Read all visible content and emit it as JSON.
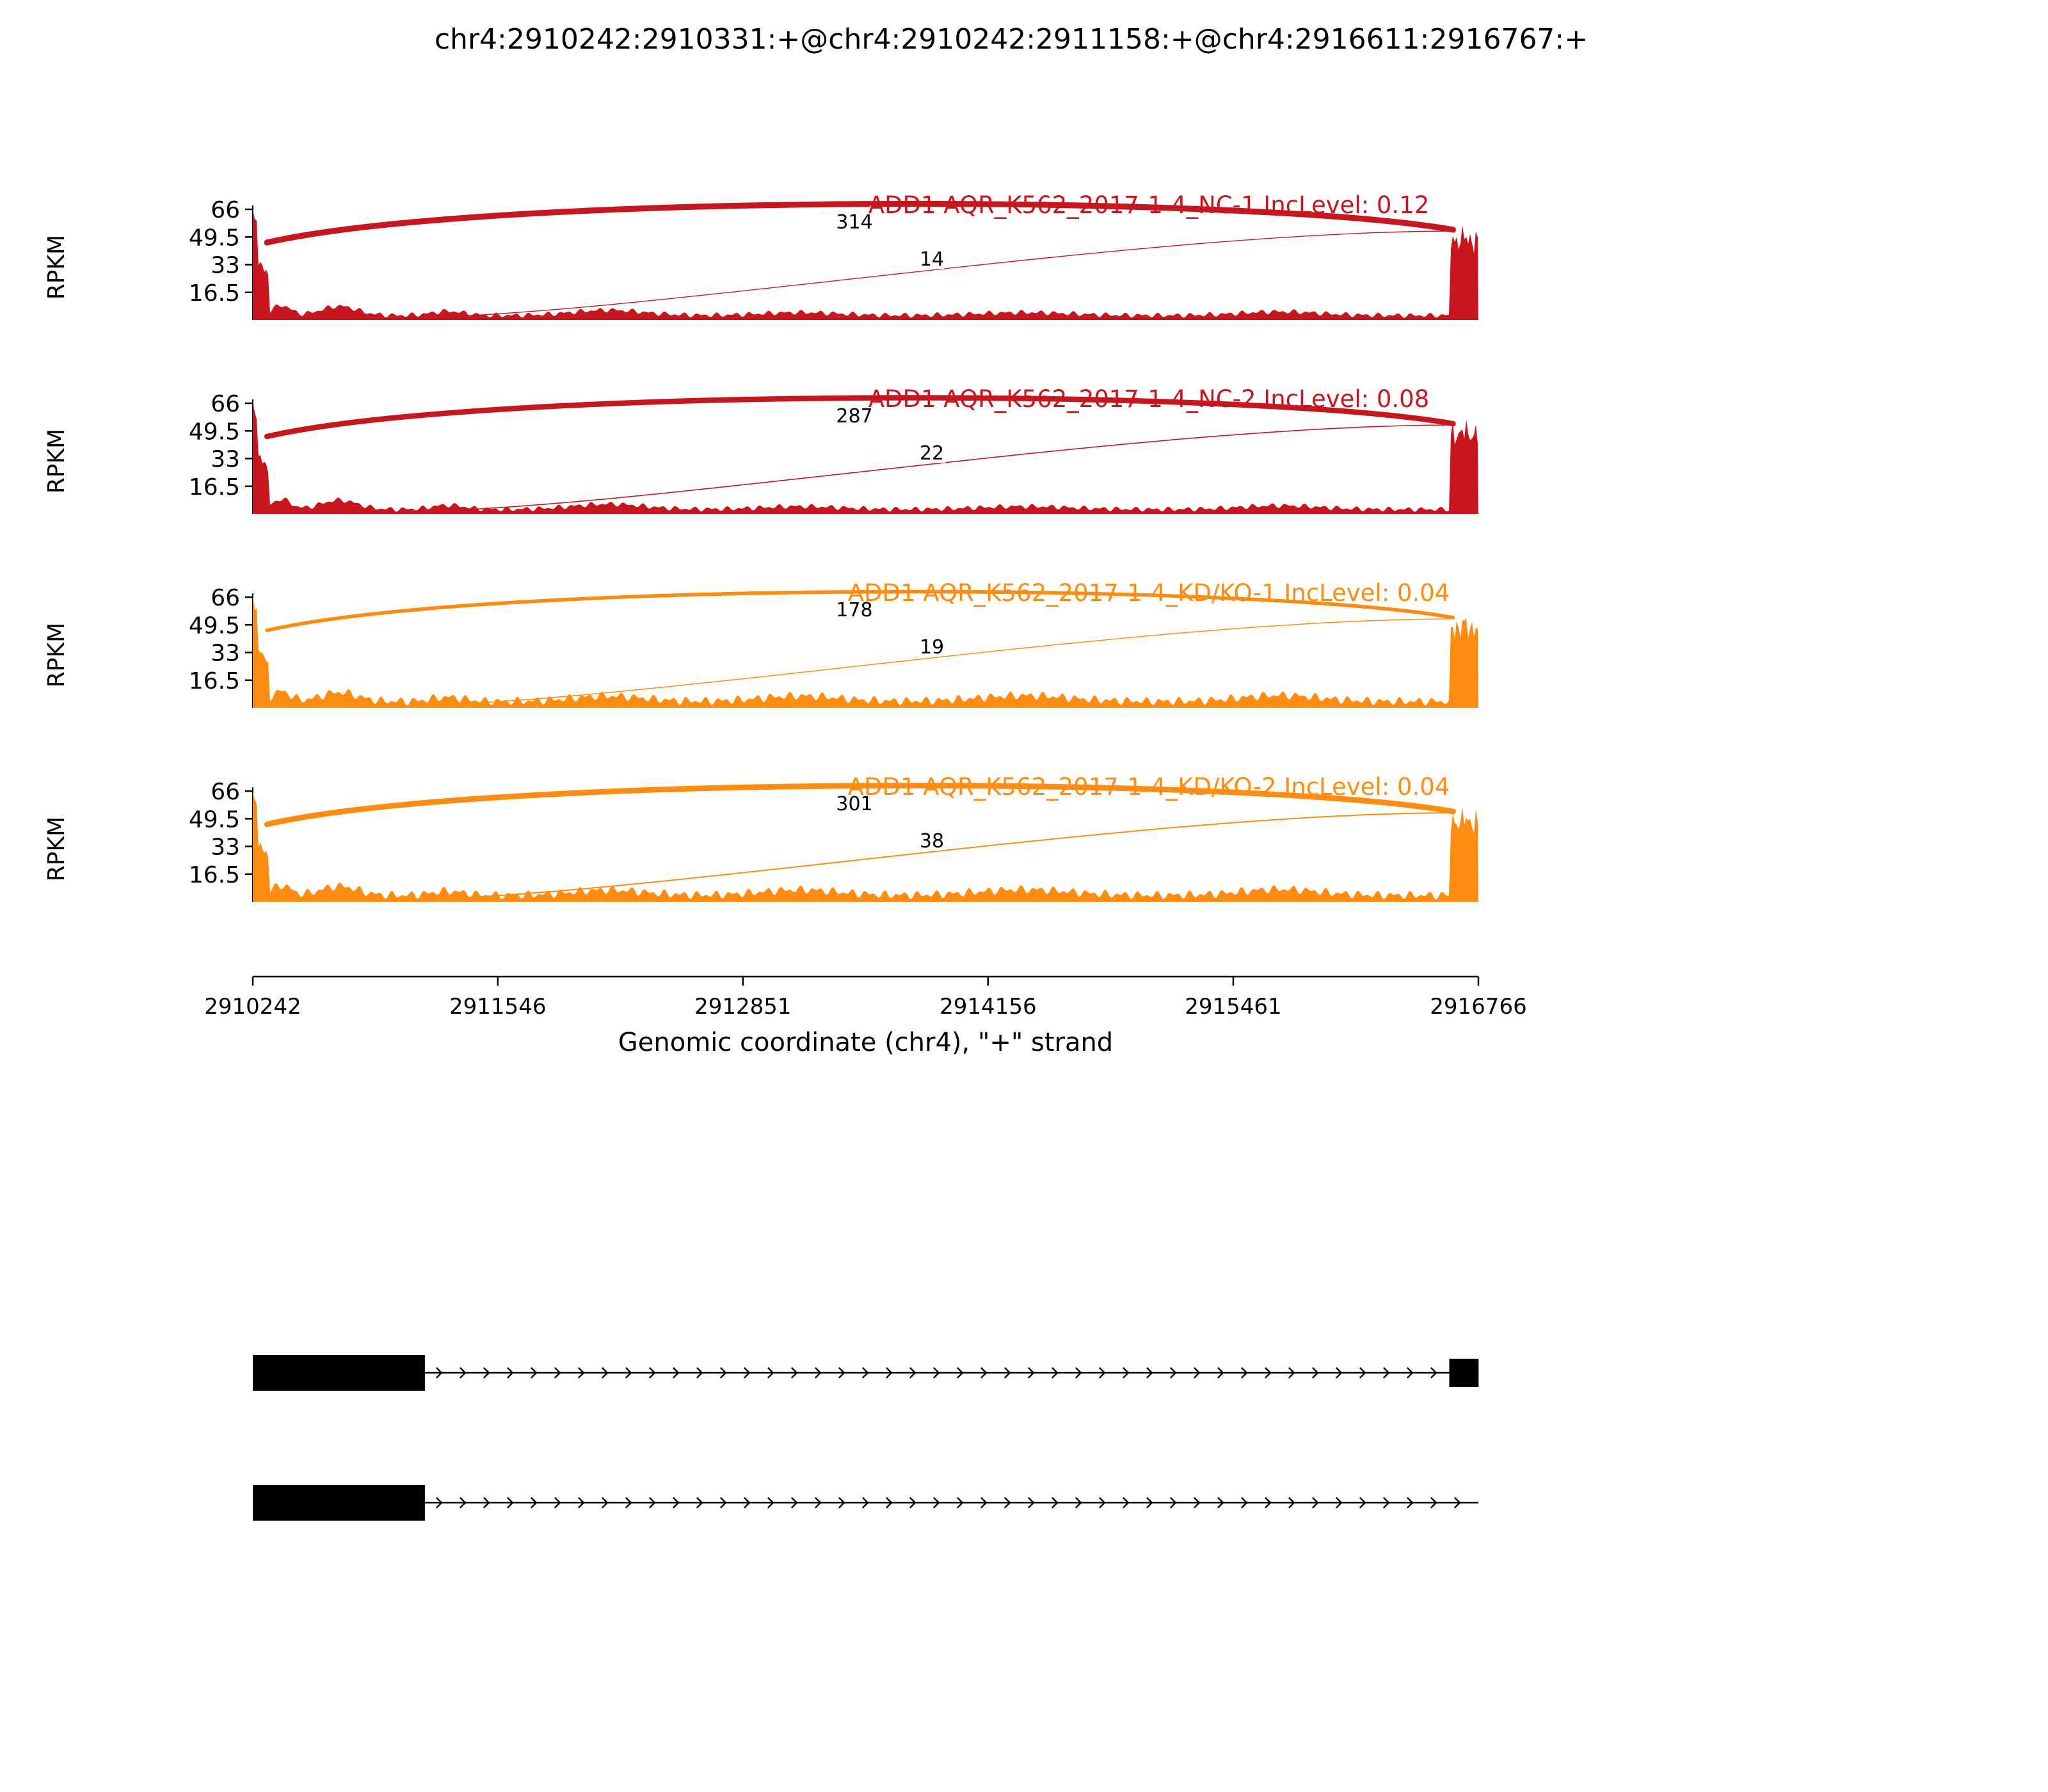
{
  "title": "chr4:2910242:2910331:+@chr4:2910242:2911158:+@chr4:2916611:2916767:+",
  "y_axis": {
    "label": "RPKM",
    "ticks": [
      "66",
      "49.5",
      "33",
      "16.5"
    ]
  },
  "x_axis": {
    "label": "Genomic coordinate (chr4), \"+\" strand",
    "ticks": [
      "2910242",
      "2911546",
      "2912851",
      "2914156",
      "2915461",
      "2916766"
    ]
  },
  "tracks": [
    {
      "label": "ADD1 AQR_K562_2017-1-4_NC-1 IncLevel: 0.12",
      "color": "#C8161E",
      "junction_labels": [
        "314",
        "14"
      ]
    },
    {
      "label": "ADD1 AQR_K562_2017-1-4_NC-2 IncLevel: 0.08",
      "color": "#C8161E",
      "junction_labels": [
        "287",
        "22"
      ]
    },
    {
      "label": "ADD1 AQR_K562_2017-1-4_KD/KO-1 IncLevel: 0.04",
      "color": "#FF8C11",
      "junction_labels": [
        "178",
        "19"
      ]
    },
    {
      "label": "ADD1 AQR_K562_2017-1-4_KD/KO-2 IncLevel: 0.04",
      "color": "#FF8C11",
      "junction_labels": [
        "301",
        "38"
      ]
    }
  ],
  "chart_data": {
    "type": "area",
    "subtype": "sashimi-plot",
    "title": "chr4:2910242:2910331:+@chr4:2910242:2911158:+@chr4:2916611:2916767:+",
    "gene": "ADD1",
    "strand": "+",
    "ylabel": "RPKM",
    "xlabel": "Genomic coordinate (chr4), \"+\" strand",
    "y_ticks": [
      16.5,
      33,
      49.5,
      66
    ],
    "ylim": [
      0,
      66
    ],
    "x_ticks": [
      2910242,
      2911546,
      2912851,
      2914156,
      2915461,
      2916766
    ],
    "x_range": [
      2910242,
      2916766
    ],
    "tracks": [
      {
        "name": "ADD1 AQR_K562_2017-1-4_NC-1",
        "group": "NC",
        "inc_level": 0.12,
        "color": "#C8161E",
        "junctions": [
          {
            "from": 2910331,
            "to": 2916611,
            "reads": 314
          },
          {
            "from": 2911158,
            "to": 2916611,
            "reads": 14
          }
        ],
        "coverage_peaks": {
          "left_exon_rpkm": 66,
          "right_exon_rpkm": 60,
          "intron_background_rpkm": 3
        }
      },
      {
        "name": "ADD1 AQR_K562_2017-1-4_NC-2",
        "group": "NC",
        "inc_level": 0.08,
        "color": "#C8161E",
        "junctions": [
          {
            "from": 2910331,
            "to": 2916611,
            "reads": 287
          },
          {
            "from": 2911158,
            "to": 2916611,
            "reads": 22
          }
        ],
        "coverage_peaks": {
          "left_exon_rpkm": 64,
          "right_exon_rpkm": 58,
          "intron_background_rpkm": 3
        }
      },
      {
        "name": "ADD1 AQR_K562_2017-1-4_KD/KO-1",
        "group": "KD/KO",
        "inc_level": 0.04,
        "color": "#FF8C11",
        "junctions": [
          {
            "from": 2910331,
            "to": 2916611,
            "reads": 178
          },
          {
            "from": 2911158,
            "to": 2916611,
            "reads": 19
          }
        ],
        "coverage_peaks": {
          "left_exon_rpkm": 62,
          "right_exon_rpkm": 58,
          "intron_background_rpkm": 5
        }
      },
      {
        "name": "ADD1 AQR_K562_2017-1-4_KD/KO-2",
        "group": "KD/KO",
        "inc_level": 0.04,
        "color": "#FF8C11",
        "junctions": [
          {
            "from": 2910331,
            "to": 2916611,
            "reads": 301
          },
          {
            "from": 2911158,
            "to": 2916611,
            "reads": 38
          }
        ],
        "coverage_peaks": {
          "left_exon_rpkm": 62,
          "right_exon_rpkm": 58,
          "intron_background_rpkm": 5
        }
      }
    ],
    "isoforms": [
      {
        "exons": [
          [
            2910242,
            2911158
          ],
          [
            2916611,
            2916767
          ]
        ]
      },
      {
        "exons": [
          [
            2910242,
            2911158
          ]
        ],
        "line_end": 2916766
      }
    ]
  }
}
